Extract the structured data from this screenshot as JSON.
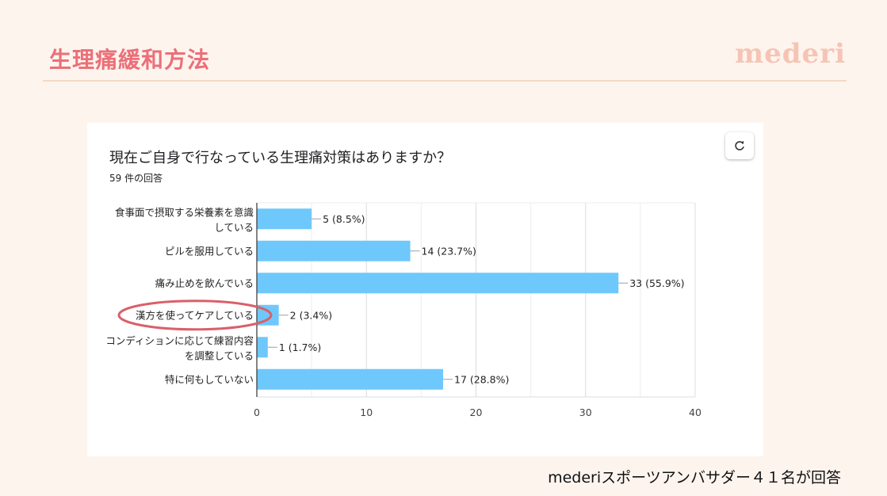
{
  "slide": {
    "title": "生理痛緩和方法",
    "brand": "mederi",
    "footnote": "mederiスポーツアンバサダー４１名が回答"
  },
  "card": {
    "question": "現在ご自身で行なっている生理痛対策はありますか？",
    "response_count": "59 件の回答",
    "refresh_icon": "refresh-icon"
  },
  "colors": {
    "bar": "#6ec8fc",
    "highlight": "#d9606a",
    "title": "#ec6f78",
    "brand": "#f6c4b4"
  },
  "chart_data": {
    "type": "bar",
    "orientation": "horizontal",
    "categories": [
      [
        "食事面で摂取する栄養素を意識",
        "している"
      ],
      [
        "ピルを服用している"
      ],
      [
        "痛み止めを飲んでいる"
      ],
      [
        "漢方を使ってケアしている"
      ],
      [
        "コンディションに応じて練習内容",
        "を調整している"
      ],
      [
        "特に何もしていない"
      ]
    ],
    "values": [
      5,
      14,
      33,
      2,
      1,
      17
    ],
    "labels": [
      "5 (8.5%)",
      "14 (23.7%)",
      "33 (55.9%)",
      "2 (3.4%)",
      "1 (1.7%)",
      "17 (28.8%)"
    ],
    "xlim": [
      0,
      40
    ],
    "xticks": [
      0,
      10,
      20,
      30,
      40
    ],
    "grid": true,
    "highlighted_category_index": 3
  }
}
